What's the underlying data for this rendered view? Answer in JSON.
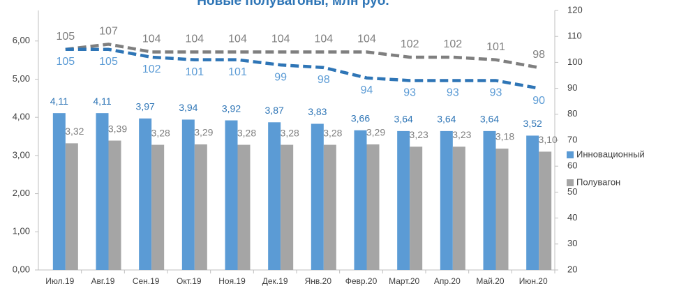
{
  "chart_data": {
    "type": "bar",
    "title": "Новые полувагоны, млн руб.",
    "categories": [
      "Июл.19",
      "Авг.19",
      "Сен.19",
      "Окт.19",
      "Ноя.19",
      "Дек.19",
      "Янв.20",
      "Февр.20",
      "Март.20",
      "Апр.20",
      "Май.20",
      "Июн.20"
    ],
    "series": [
      {
        "name": "Инновационный",
        "color": "#5b9bd5",
        "type": "bar",
        "values": [
          4.11,
          4.11,
          3.97,
          3.94,
          3.92,
          3.87,
          3.83,
          3.66,
          3.64,
          3.64,
          3.64,
          3.52
        ],
        "value_labels": [
          "4,11",
          "4,11",
          "3,97",
          "3,94",
          "3,92",
          "3,87",
          "3,83",
          "3,66",
          "3,64",
          "3,64",
          "3,64",
          "3,52"
        ]
      },
      {
        "name": "Полувагон",
        "color": "#a5a5a5",
        "type": "bar",
        "values": [
          3.32,
          3.39,
          3.28,
          3.29,
          3.28,
          3.28,
          3.28,
          3.29,
          3.23,
          3.23,
          3.18,
          3.1
        ],
        "value_labels": [
          "3,32",
          "3,39",
          "3,28",
          "3,29",
          "3,28",
          "3,28",
          "3,28",
          "3,29",
          "3,23",
          "3,23",
          "3,18",
          "3,10"
        ]
      },
      {
        "color": "#7f7f7f",
        "type": "line",
        "axis": "y2",
        "values": [
          105,
          107,
          104,
          104,
          104,
          104,
          104,
          104,
          102,
          102,
          101,
          98
        ]
      },
      {
        "color": "#2e75b6",
        "type": "line",
        "axis": "y2",
        "values": [
          105,
          105,
          102,
          101,
          101,
          99,
          98,
          94,
          93,
          93,
          93,
          90
        ]
      }
    ],
    "ylim": [
      0,
      6.8
    ],
    "yticks": [
      {
        "value": 0,
        "label": "0,00"
      },
      {
        "value": 1,
        "label": "1,00"
      },
      {
        "value": 2,
        "label": "2,00"
      },
      {
        "value": 3,
        "label": "3,00"
      },
      {
        "value": 4,
        "label": "4,00"
      },
      {
        "value": 5,
        "label": "5,00"
      },
      {
        "value": 6,
        "label": "6,00"
      }
    ],
    "y2lim": [
      20,
      120
    ],
    "y2ticks": [
      20,
      30,
      40,
      50,
      60,
      70,
      80,
      90,
      100,
      110,
      120
    ],
    "legend": "right"
  }
}
